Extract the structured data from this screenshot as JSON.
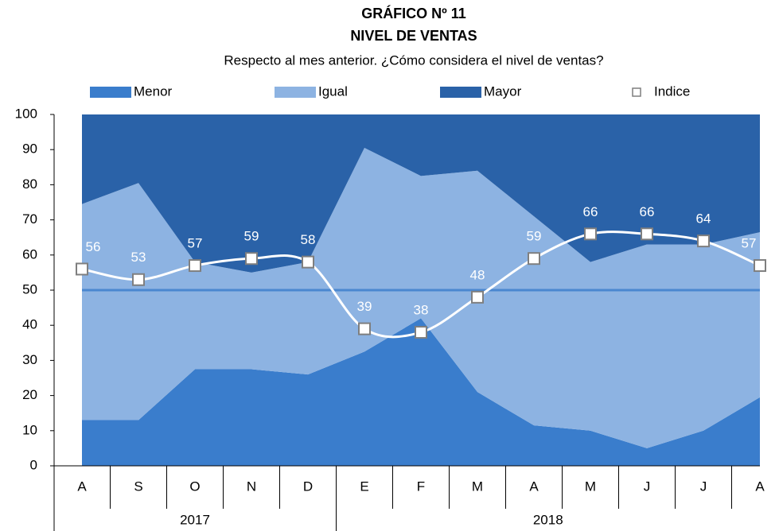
{
  "chart_data": {
    "type": "stacked_area_line",
    "title": [
      "GRÁFICO Nº 11",
      "NIVEL DE VENTAS"
    ],
    "subtitle": "Respecto al mes anterior. ¿Cómo considera el nivel de ventas?",
    "categories": [
      "A",
      "S",
      "O",
      "N",
      "D",
      "E",
      "F",
      "M",
      "A",
      "M",
      "J",
      "J",
      "A"
    ],
    "groups": [
      {
        "label": "2017",
        "span": 5
      },
      {
        "label": "2018",
        "span": 8
      }
    ],
    "series": [
      {
        "name": "Menor",
        "type": "area",
        "color": "#3a7dcc",
        "values": [
          13,
          13,
          27.5,
          27.5,
          26,
          32.5,
          42,
          21,
          11.5,
          10,
          5,
          10,
          19.5
        ]
      },
      {
        "name": "Igual",
        "type": "area",
        "color": "#8db3e2",
        "values": [
          61.5,
          67.5,
          30.5,
          27.5,
          32,
          58,
          40.5,
          63,
          59.5,
          48,
          58,
          53,
          47
        ]
      },
      {
        "name": "Mayor",
        "type": "area",
        "color": "#2a62a8",
        "values": [
          25.5,
          19.5,
          42,
          45,
          42,
          9.5,
          17.5,
          16,
          29,
          42,
          37,
          37,
          33.5
        ]
      },
      {
        "name": "Indice",
        "type": "line",
        "color": "#ffffff",
        "values": [
          56,
          53,
          57,
          59,
          58,
          39,
          38,
          48,
          59,
          66,
          66,
          64,
          57
        ]
      }
    ],
    "reference_line": {
      "value": 50,
      "color": "#4a87d0"
    },
    "ylim": [
      0,
      100
    ],
    "yticks": [
      0,
      10,
      20,
      30,
      40,
      50,
      60,
      70,
      80,
      90,
      100
    ],
    "legend": "top"
  }
}
